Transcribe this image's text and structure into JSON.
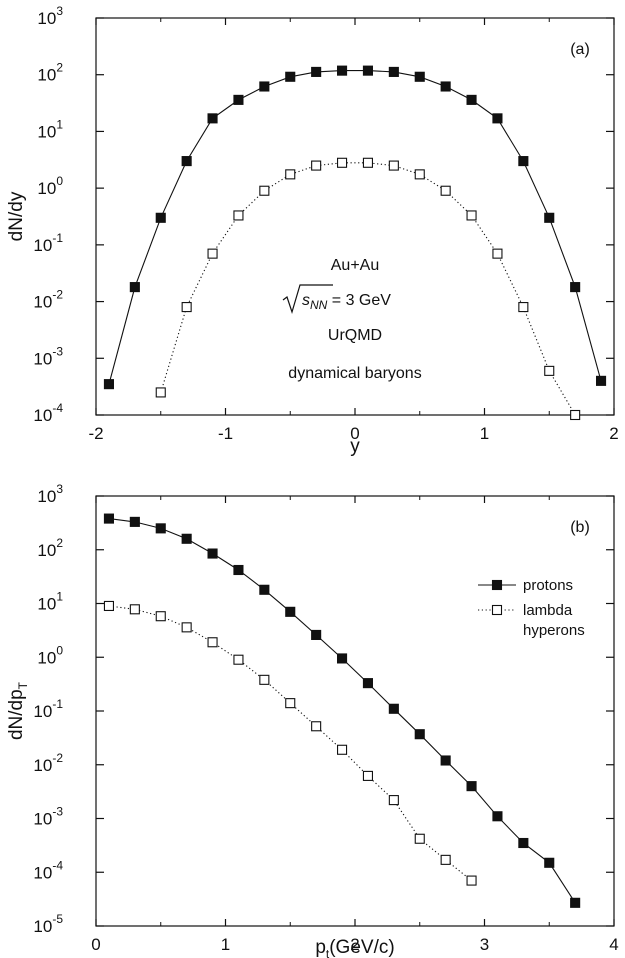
{
  "chart_data": [
    {
      "type": "line",
      "panel_label": "(a)",
      "xlabel": "y",
      "ylabel": "dN/dy",
      "xlim": [
        -2,
        2
      ],
      "ylim": [
        0.0001,
        1000
      ],
      "yscale": "log",
      "xticks": [
        "-2",
        "-1",
        "0",
        "1",
        "2"
      ],
      "yticks": [
        {
          "base": "10",
          "exp": "3",
          "value": 1000
        },
        {
          "base": "10",
          "exp": "2",
          "value": 100
        },
        {
          "base": "10",
          "exp": "1",
          "value": 10
        },
        {
          "base": "10",
          "exp": "0",
          "value": 1
        },
        {
          "base": "10",
          "exp": "-1",
          "value": 0.1
        },
        {
          "base": "10",
          "exp": "-2",
          "value": 0.01
        },
        {
          "base": "10",
          "exp": "-3",
          "value": 0.001
        },
        {
          "base": "10",
          "exp": "-4",
          "value": 0.0001
        }
      ],
      "annotations": {
        "system": "Au+Au",
        "energy_sqrt": "s",
        "energy_sub": "NN",
        "energy_rest": " = 3 GeV",
        "model": "UrQMD",
        "note": "dynamical baryons"
      },
      "series": [
        {
          "marker": "filled-square",
          "line": "solid",
          "color": "#111111",
          "x": [
            -1.9,
            -1.7,
            -1.5,
            -1.3,
            -1.1,
            -0.9,
            -0.7,
            -0.5,
            -0.3,
            -0.1,
            0.1,
            0.3,
            0.5,
            0.7,
            0.9,
            1.1,
            1.3,
            1.5,
            1.7,
            1.9
          ],
          "y": [
            0.00035,
            0.018,
            0.3,
            3.0,
            17,
            36,
            62,
            92,
            112,
            118,
            118,
            112,
            92,
            62,
            36,
            17,
            3.0,
            0.3,
            0.018,
            0.0004
          ]
        },
        {
          "marker": "open-square",
          "line": "dotted",
          "color": "#111111",
          "x": [
            -1.5,
            -1.3,
            -1.1,
            -0.9,
            -0.7,
            -0.5,
            -0.3,
            -0.1,
            0.1,
            0.3,
            0.5,
            0.7,
            0.9,
            1.1,
            1.3,
            1.5,
            1.7
          ],
          "y": [
            0.00025,
            0.008,
            0.07,
            0.33,
            0.9,
            1.75,
            2.5,
            2.8,
            2.8,
            2.5,
            1.75,
            0.9,
            0.33,
            0.07,
            0.008,
            0.0006,
            0.0001
          ]
        }
      ]
    },
    {
      "type": "line",
      "panel_label": "(b)",
      "xlabel": "p",
      "xlabel_sub": "t",
      "xlabel_rest": "(GeV/c)",
      "ylabel": "dN/dp",
      "ylabel_sub": "T",
      "xlim": [
        0,
        4
      ],
      "ylim": [
        1e-05,
        1000
      ],
      "yscale": "log",
      "xticks": [
        "0",
        "1",
        "2",
        "3",
        "4"
      ],
      "yticks": [
        {
          "base": "10",
          "exp": "3",
          "value": 1000
        },
        {
          "base": "10",
          "exp": "2",
          "value": 100
        },
        {
          "base": "10",
          "exp": "1",
          "value": 10
        },
        {
          "base": "10",
          "exp": "0",
          "value": 1
        },
        {
          "base": "10",
          "exp": "-1",
          "value": 0.1
        },
        {
          "base": "10",
          "exp": "-2",
          "value": 0.01
        },
        {
          "base": "10",
          "exp": "-3",
          "value": 0.001
        },
        {
          "base": "10",
          "exp": "-4",
          "value": 0.0001
        },
        {
          "base": "10",
          "exp": "-5",
          "value": 1e-05
        }
      ],
      "legend_position": "top-right",
      "series": [
        {
          "name": "protons",
          "legend_lines": [
            "protons"
          ],
          "marker": "filled-square",
          "line": "solid",
          "color": "#111111",
          "x": [
            0.1,
            0.3,
            0.5,
            0.7,
            0.9,
            1.1,
            1.3,
            1.5,
            1.7,
            1.9,
            2.1,
            2.3,
            2.5,
            2.7,
            2.9,
            3.1,
            3.3,
            3.5,
            3.7
          ],
          "y": [
            380,
            330,
            250,
            160,
            85,
            42,
            18,
            7,
            2.6,
            0.95,
            0.33,
            0.11,
            0.037,
            0.012,
            0.004,
            0.0011,
            0.00035,
            0.00015,
            2.7e-05
          ]
        },
        {
          "name": "lambda hyperons",
          "legend_lines": [
            "lambda",
            "hyperons"
          ],
          "marker": "open-square",
          "line": "dotted",
          "color": "#111111",
          "x": [
            0.1,
            0.3,
            0.5,
            0.7,
            0.9,
            1.1,
            1.3,
            1.5,
            1.7,
            1.9,
            2.1,
            2.3,
            2.5,
            2.7,
            2.9
          ],
          "y": [
            9,
            7.8,
            5.8,
            3.6,
            1.9,
            0.9,
            0.38,
            0.14,
            0.052,
            0.019,
            0.0062,
            0.0022,
            0.00042,
            0.00017,
            7e-05
          ]
        }
      ]
    }
  ]
}
